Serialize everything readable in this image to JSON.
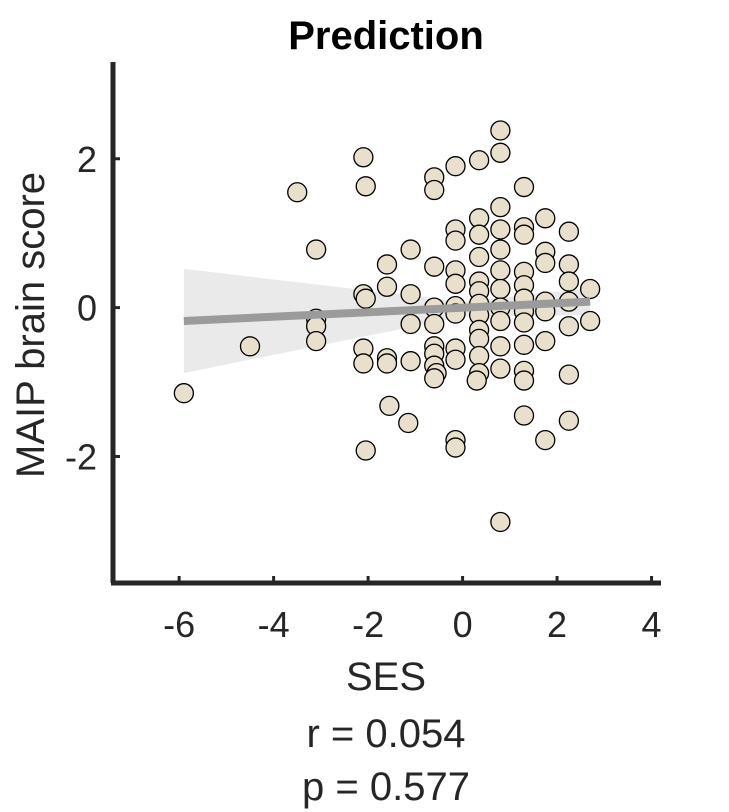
{
  "chart_data": {
    "type": "scatter",
    "title": "Prediction",
    "xlabel": "SES",
    "ylabel": "MAIP brain score",
    "xlim": [
      -7.4,
      4.2
    ],
    "ylim": [
      -3.7,
      3.3
    ],
    "xticks": [
      -6,
      -4,
      -2,
      0,
      2,
      4
    ],
    "xtick_labels": [
      "-6",
      "-4",
      "-2",
      "0",
      "2",
      "4"
    ],
    "yticks": [
      -2,
      0,
      2
    ],
    "ytick_labels": [
      "-2",
      "0",
      "2"
    ],
    "grid": false,
    "annotations": [
      "r = 0.054",
      "p = 0.577"
    ],
    "colors": {
      "marker_fill": "#e8dfcd",
      "marker_edge": "#000000",
      "fit_line": "#9b9b9b",
      "ci_band": "#e6e6e6",
      "axis": "#262626"
    },
    "fit_line": {
      "x": [
        -5.9,
        2.7
      ],
      "y": [
        -0.18,
        0.08
      ]
    },
    "confidence_band": {
      "x": [
        -5.9,
        0,
        2.7
      ],
      "upper": [
        0.52,
        0.08,
        0.26
      ],
      "lower": [
        -0.88,
        -0.12,
        -0.1
      ]
    },
    "points": [
      [
        -5.9,
        -1.15
      ],
      [
        -4.5,
        -0.52
      ],
      [
        -3.5,
        1.55
      ],
      [
        -3.1,
        0.78
      ],
      [
        -3.1,
        -0.15
      ],
      [
        -3.1,
        -0.25
      ],
      [
        -3.1,
        -0.45
      ],
      [
        -2.1,
        2.02
      ],
      [
        -2.05,
        1.63
      ],
      [
        -2.1,
        0.18
      ],
      [
        -2.05,
        0.12
      ],
      [
        -2.1,
        -0.55
      ],
      [
        -2.1,
        -0.75
      ],
      [
        -2.05,
        -1.92
      ],
      [
        -1.6,
        0.58
      ],
      [
        -1.6,
        0.28
      ],
      [
        -1.6,
        -0.68
      ],
      [
        -1.6,
        -0.75
      ],
      [
        -1.55,
        -1.32
      ],
      [
        -1.1,
        0.78
      ],
      [
        -1.1,
        0.18
      ],
      [
        -1.1,
        -0.22
      ],
      [
        -1.1,
        -0.72
      ],
      [
        -1.15,
        -1.55
      ],
      [
        -0.6,
        1.75
      ],
      [
        -0.6,
        1.58
      ],
      [
        -0.6,
        0.55
      ],
      [
        -0.6,
        0.0
      ],
      [
        -0.6,
        -0.22
      ],
      [
        -0.6,
        -0.52
      ],
      [
        -0.6,
        -0.62
      ],
      [
        -0.6,
        -0.78
      ],
      [
        -0.55,
        -0.88
      ],
      [
        -0.6,
        -0.95
      ],
      [
        -0.15,
        1.9
      ],
      [
        -0.15,
        1.05
      ],
      [
        -0.15,
        0.9
      ],
      [
        -0.15,
        0.5
      ],
      [
        -0.15,
        0.32
      ],
      [
        -0.15,
        0.02
      ],
      [
        -0.15,
        -0.08
      ],
      [
        -0.15,
        -0.55
      ],
      [
        -0.15,
        -0.7
      ],
      [
        -0.15,
        -1.78
      ],
      [
        -0.15,
        -1.88
      ],
      [
        0.35,
        1.98
      ],
      [
        0.35,
        1.2
      ],
      [
        0.35,
        0.98
      ],
      [
        0.35,
        0.68
      ],
      [
        0.35,
        0.35
      ],
      [
        0.35,
        0.22
      ],
      [
        0.35,
        0.05
      ],
      [
        0.35,
        -0.1
      ],
      [
        0.35,
        -0.3
      ],
      [
        0.35,
        -0.42
      ],
      [
        0.35,
        -0.65
      ],
      [
        0.35,
        -0.88
      ],
      [
        0.3,
        -0.98
      ],
      [
        0.8,
        2.38
      ],
      [
        0.8,
        2.08
      ],
      [
        0.8,
        1.35
      ],
      [
        0.8,
        1.05
      ],
      [
        0.8,
        0.78
      ],
      [
        0.8,
        0.5
      ],
      [
        0.8,
        0.25
      ],
      [
        0.8,
        0.0
      ],
      [
        0.8,
        -0.18
      ],
      [
        0.8,
        -0.52
      ],
      [
        0.8,
        -0.82
      ],
      [
        0.8,
        -2.88
      ],
      [
        1.3,
        1.62
      ],
      [
        1.3,
        1.08
      ],
      [
        1.3,
        0.98
      ],
      [
        1.3,
        0.48
      ],
      [
        1.3,
        0.3
      ],
      [
        1.3,
        0.12
      ],
      [
        1.3,
        -0.05
      ],
      [
        1.3,
        -0.2
      ],
      [
        1.3,
        -0.5
      ],
      [
        1.3,
        -0.85
      ],
      [
        1.3,
        -0.98
      ],
      [
        1.3,
        -1.45
      ],
      [
        1.75,
        1.2
      ],
      [
        1.75,
        0.75
      ],
      [
        1.75,
        0.6
      ],
      [
        1.75,
        0.08
      ],
      [
        1.75,
        -0.05
      ],
      [
        1.75,
        -0.45
      ],
      [
        1.75,
        -1.78
      ],
      [
        2.25,
        1.02
      ],
      [
        2.25,
        0.58
      ],
      [
        2.25,
        0.35
      ],
      [
        2.25,
        0.08
      ],
      [
        2.25,
        -0.25
      ],
      [
        2.25,
        -0.9
      ],
      [
        2.25,
        -1.52
      ],
      [
        2.7,
        0.25
      ],
      [
        2.7,
        -0.18
      ]
    ]
  }
}
